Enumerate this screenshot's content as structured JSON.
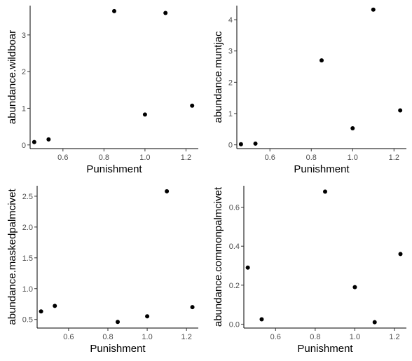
{
  "chart_data": [
    {
      "type": "scatter",
      "xlabel": "Punishment",
      "ylabel": "abundance.wildboar",
      "xlim": [
        0.44,
        1.26
      ],
      "ylim": [
        -0.1,
        3.8
      ],
      "xticks": [
        0.6,
        0.8,
        1.0,
        1.2
      ],
      "xtick_labels": [
        "0.6",
        "0.8",
        "1.0",
        "1.2"
      ],
      "yticks": [
        0,
        1,
        2,
        3
      ],
      "ytick_labels": [
        "0",
        "1",
        "2",
        "3"
      ],
      "grid": false,
      "points": [
        {
          "x": 0.46,
          "y": 0.08
        },
        {
          "x": 0.53,
          "y": 0.15
        },
        {
          "x": 0.85,
          "y": 3.65
        },
        {
          "x": 1.0,
          "y": 0.83
        },
        {
          "x": 1.1,
          "y": 3.6
        },
        {
          "x": 1.23,
          "y": 1.07
        }
      ]
    },
    {
      "type": "scatter",
      "xlabel": "Punishment",
      "ylabel": "abundance.muntjac",
      "xlim": [
        0.44,
        1.26
      ],
      "ylim": [
        -0.12,
        4.45
      ],
      "xticks": [
        0.6,
        0.8,
        1.0,
        1.2
      ],
      "xtick_labels": [
        "0.6",
        "0.8",
        "1.0",
        "1.2"
      ],
      "yticks": [
        0,
        1,
        2,
        3,
        4
      ],
      "ytick_labels": [
        "0",
        "1",
        "2",
        "3",
        "4"
      ],
      "grid": false,
      "points": [
        {
          "x": 0.46,
          "y": 0.02
        },
        {
          "x": 0.53,
          "y": 0.04
        },
        {
          "x": 0.85,
          "y": 2.7
        },
        {
          "x": 1.0,
          "y": 0.53
        },
        {
          "x": 1.1,
          "y": 4.32
        },
        {
          "x": 1.23,
          "y": 1.1
        }
      ]
    },
    {
      "type": "scatter",
      "xlabel": "Punishment",
      "ylabel": "abundance.maskedpalmcivet",
      "xlim": [
        0.44,
        1.26
      ],
      "ylim": [
        0.36,
        2.67
      ],
      "xticks": [
        0.6,
        0.8,
        1.0,
        1.2
      ],
      "xtick_labels": [
        "0.6",
        "0.8",
        "1.0",
        "1.2"
      ],
      "yticks": [
        0.5,
        1.0,
        1.5,
        2.0,
        2.5
      ],
      "ytick_labels": [
        "0.5",
        "1.0",
        "1.5",
        "2.0",
        "2.5"
      ],
      "grid": false,
      "points": [
        {
          "x": 0.46,
          "y": 0.63
        },
        {
          "x": 0.53,
          "y": 0.72
        },
        {
          "x": 0.85,
          "y": 0.46
        },
        {
          "x": 1.0,
          "y": 0.55
        },
        {
          "x": 1.1,
          "y": 2.58
        },
        {
          "x": 1.23,
          "y": 0.7
        }
      ]
    },
    {
      "type": "scatter",
      "xlabel": "Punishment",
      "ylabel": "abundance.commonpalmcivet",
      "xlim": [
        0.44,
        1.26
      ],
      "ylim": [
        -0.02,
        0.71
      ],
      "xticks": [
        0.6,
        0.8,
        1.0,
        1.2
      ],
      "xtick_labels": [
        "0.6",
        "0.8",
        "1.0",
        "1.2"
      ],
      "yticks": [
        0.0,
        0.2,
        0.4,
        0.6
      ],
      "ytick_labels": [
        "0.0",
        "0.2",
        "0.4",
        "0.6"
      ],
      "grid": false,
      "points": [
        {
          "x": 0.46,
          "y": 0.29
        },
        {
          "x": 0.53,
          "y": 0.025
        },
        {
          "x": 0.85,
          "y": 0.68
        },
        {
          "x": 1.0,
          "y": 0.19
        },
        {
          "x": 1.1,
          "y": 0.01
        },
        {
          "x": 1.23,
          "y": 0.36
        }
      ]
    }
  ]
}
